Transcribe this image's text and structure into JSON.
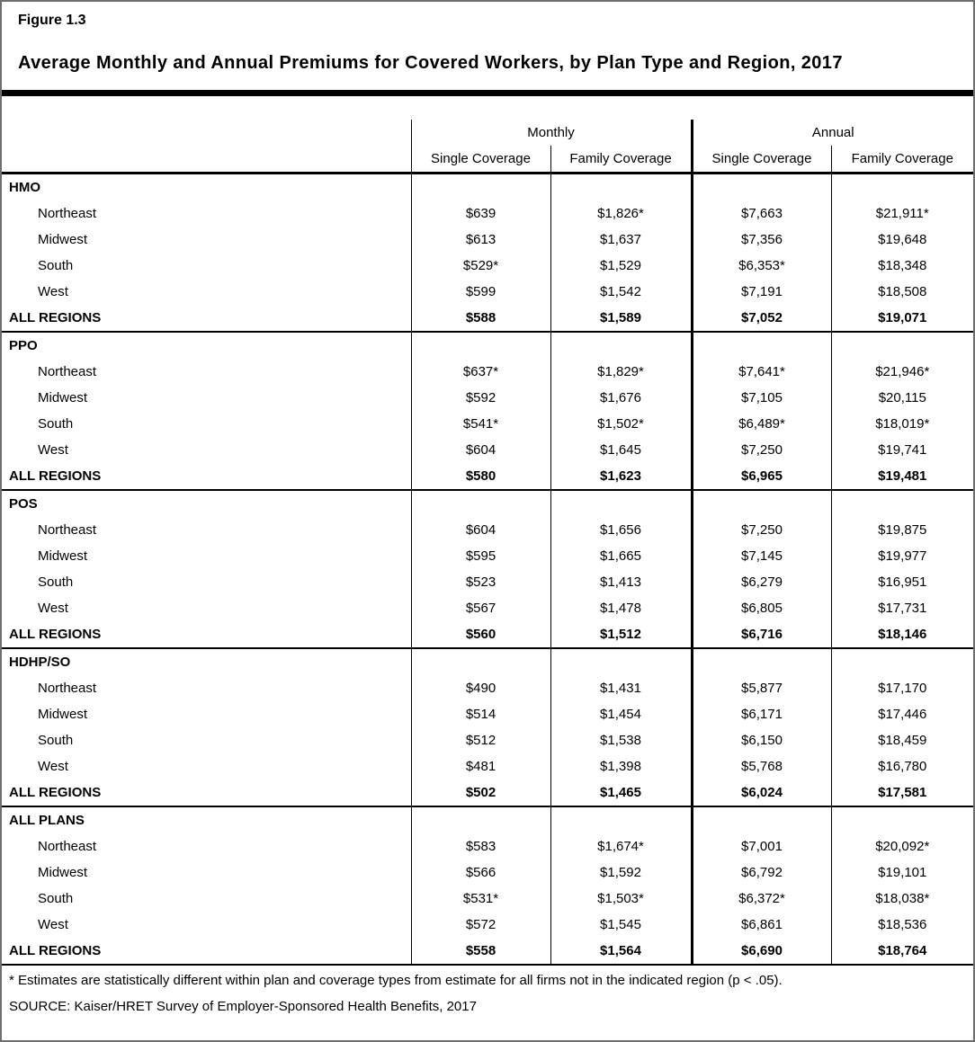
{
  "figure_label": "Figure 1.3",
  "title": "Average Monthly and Annual Premiums for Covered Workers, by Plan Type and Region, 2017",
  "table": {
    "group_headers": [
      "Monthly",
      "Annual"
    ],
    "column_headers": [
      "Single Coverage",
      "Family Coverage",
      "Single Coverage",
      "Family Coverage"
    ],
    "sections": [
      {
        "plan": "HMO",
        "rows": [
          {
            "label": "Northeast",
            "values": [
              "$639",
              "$1,826*",
              "$7,663",
              "$21,911*"
            ]
          },
          {
            "label": "Midwest",
            "values": [
              "$613",
              "$1,637",
              "$7,356",
              "$19,648"
            ]
          },
          {
            "label": "South",
            "values": [
              "$529*",
              "$1,529",
              "$6,353*",
              "$18,348"
            ]
          },
          {
            "label": "West",
            "values": [
              "$599",
              "$1,542",
              "$7,191",
              "$18,508"
            ]
          },
          {
            "label": "ALL REGIONS",
            "values": [
              "$588",
              "$1,589",
              "$7,052",
              "$19,071"
            ]
          }
        ]
      },
      {
        "plan": "PPO",
        "rows": [
          {
            "label": "Northeast",
            "values": [
              "$637*",
              "$1,829*",
              "$7,641*",
              "$21,946*"
            ]
          },
          {
            "label": "Midwest",
            "values": [
              "$592",
              "$1,676",
              "$7,105",
              "$20,115"
            ]
          },
          {
            "label": "South",
            "values": [
              "$541*",
              "$1,502*",
              "$6,489*",
              "$18,019*"
            ]
          },
          {
            "label": "West",
            "values": [
              "$604",
              "$1,645",
              "$7,250",
              "$19,741"
            ]
          },
          {
            "label": "ALL REGIONS",
            "values": [
              "$580",
              "$1,623",
              "$6,965",
              "$19,481"
            ]
          }
        ]
      },
      {
        "plan": "POS",
        "rows": [
          {
            "label": "Northeast",
            "values": [
              "$604",
              "$1,656",
              "$7,250",
              "$19,875"
            ]
          },
          {
            "label": "Midwest",
            "values": [
              "$595",
              "$1,665",
              "$7,145",
              "$19,977"
            ]
          },
          {
            "label": "South",
            "values": [
              "$523",
              "$1,413",
              "$6,279",
              "$16,951"
            ]
          },
          {
            "label": "West",
            "values": [
              "$567",
              "$1,478",
              "$6,805",
              "$17,731"
            ]
          },
          {
            "label": "ALL REGIONS",
            "values": [
              "$560",
              "$1,512",
              "$6,716",
              "$18,146"
            ]
          }
        ]
      },
      {
        "plan": "HDHP/SO",
        "rows": [
          {
            "label": "Northeast",
            "values": [
              "$490",
              "$1,431",
              "$5,877",
              "$17,170"
            ]
          },
          {
            "label": "Midwest",
            "values": [
              "$514",
              "$1,454",
              "$6,171",
              "$17,446"
            ]
          },
          {
            "label": "South",
            "values": [
              "$512",
              "$1,538",
              "$6,150",
              "$18,459"
            ]
          },
          {
            "label": "West",
            "values": [
              "$481",
              "$1,398",
              "$5,768",
              "$16,780"
            ]
          },
          {
            "label": "ALL REGIONS",
            "values": [
              "$502",
              "$1,465",
              "$6,024",
              "$17,581"
            ]
          }
        ]
      },
      {
        "plan": "ALL PLANS",
        "rows": [
          {
            "label": "Northeast",
            "values": [
              "$583",
              "$1,674*",
              "$7,001",
              "$20,092*"
            ]
          },
          {
            "label": "Midwest",
            "values": [
              "$566",
              "$1,592",
              "$6,792",
              "$19,101"
            ]
          },
          {
            "label": "South",
            "values": [
              "$531*",
              "$1,503*",
              "$6,372*",
              "$18,038*"
            ]
          },
          {
            "label": "West",
            "values": [
              "$572",
              "$1,545",
              "$6,861",
              "$18,536"
            ]
          },
          {
            "label": "ALL REGIONS",
            "values": [
              "$558",
              "$1,564",
              "$6,690",
              "$18,764"
            ]
          }
        ]
      }
    ]
  },
  "footnote": "* Estimates are statistically different within plan and coverage types from estimate for all firms not in the indicated region (p < .05).",
  "source": "SOURCE: Kaiser/HRET Survey of Employer-Sponsored Health Benefits, 2017"
}
